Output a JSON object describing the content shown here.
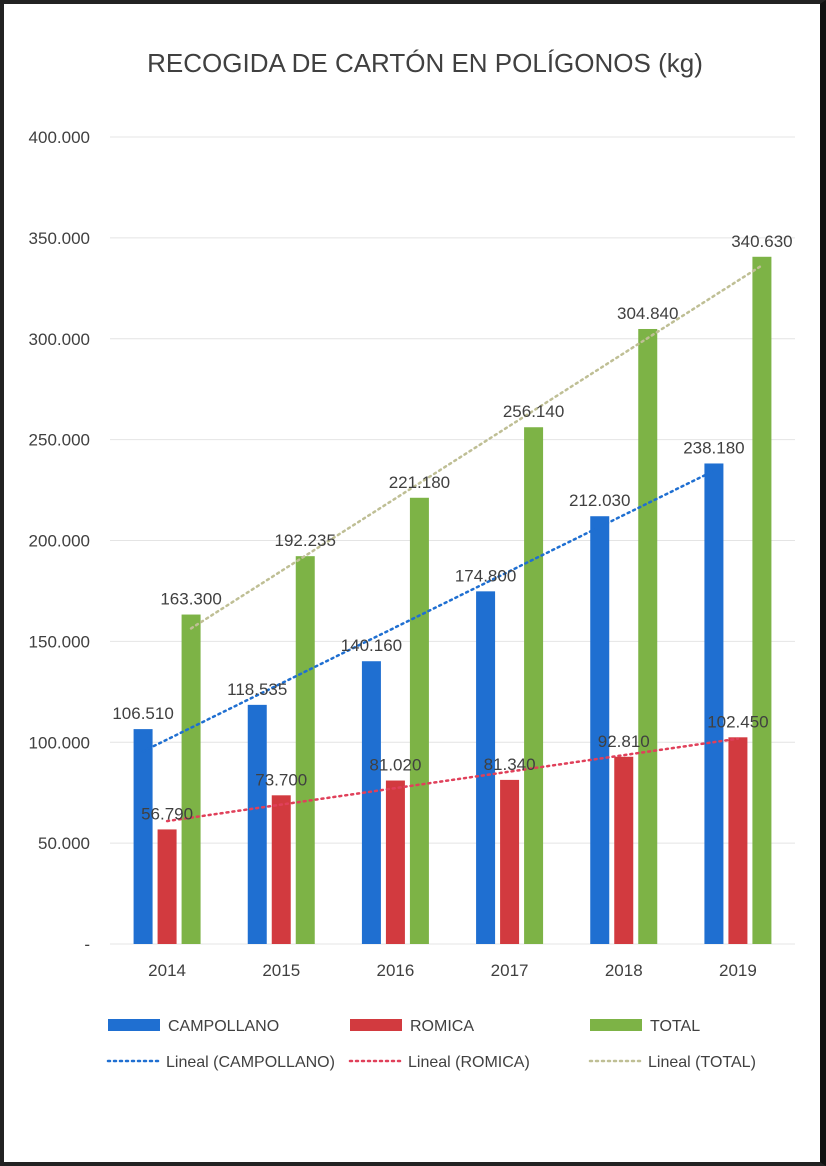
{
  "chart_data": {
    "type": "bar",
    "title": "RECOGIDA DE CARTÓN EN POLÍGONOS (kg)",
    "xlabel": "",
    "ylabel": "",
    "categories": [
      "2014",
      "2015",
      "2016",
      "2017",
      "2018",
      "2019"
    ],
    "ylim": [
      0,
      400000
    ],
    "yticks": [
      0,
      50000,
      100000,
      150000,
      200000,
      250000,
      300000,
      350000,
      400000
    ],
    "ytick_labels": [
      "-",
      "50.000",
      "100.000",
      "150.000",
      "200.000",
      "250.000",
      "300.000",
      "350.000",
      "400.000"
    ],
    "series": [
      {
        "name": "CAMPOLLANO",
        "color": "#1f6fd1",
        "values": [
          106510,
          118535,
          140160,
          174800,
          212030,
          238180
        ],
        "labels": [
          "106.510",
          "118.535",
          "140.160",
          "174.800",
          "212.030",
          "238.180"
        ]
      },
      {
        "name": "ROMICA",
        "color": "#d23a3f",
        "values": [
          56790,
          73700,
          81020,
          81340,
          92810,
          102450
        ],
        "labels": [
          "56.790",
          "73.700",
          "81.020",
          "81.340",
          "92.810",
          "102.450"
        ]
      },
      {
        "name": "TOTAL",
        "color": "#7db346",
        "values": [
          163300,
          192235,
          221180,
          256140,
          304840,
          340630
        ],
        "labels": [
          "163.300",
          "192.235",
          "221.180",
          "256.140",
          "304.840",
          "340.630"
        ]
      }
    ],
    "trendlines": [
      {
        "name": "Lineal (CAMPOLLANO)",
        "series": 0,
        "color": "#1f6fd1"
      },
      {
        "name": "Lineal (ROMICA)",
        "series": 1,
        "color": "#e0405a"
      },
      {
        "name": "Lineal (TOTAL)",
        "series": 2,
        "color": "#bfbf95"
      }
    ],
    "grid": true,
    "legend_position": "bottom"
  }
}
